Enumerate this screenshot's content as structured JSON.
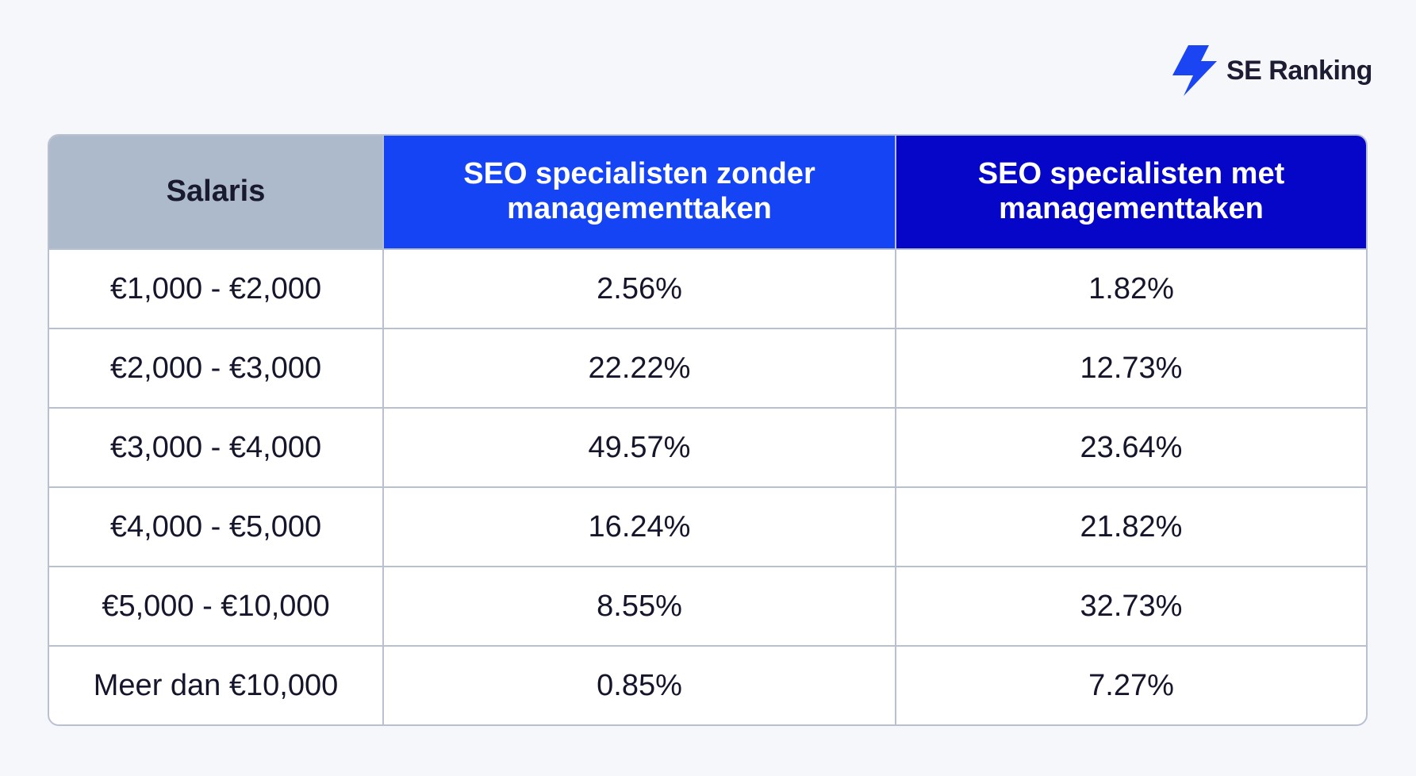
{
  "brand": {
    "name": "SE Ranking",
    "icon": "lightning-bolt-icon",
    "color": "#1b45f2"
  },
  "chart_data": {
    "type": "table",
    "columns": [
      "Salaris",
      "SEO specialisten zonder managementtaken",
      "SEO specialisten met managementtaken"
    ],
    "header_colors": [
      "#acbacb",
      "#1544f5",
      "#0606c8"
    ],
    "rows": [
      [
        "€1,000 - €2,000",
        "2.56%",
        "1.82%"
      ],
      [
        "€2,000 - €3,000",
        "22.22%",
        "12.73%"
      ],
      [
        "€3,000 - €4,000",
        "49.57%",
        "23.64%"
      ],
      [
        "€4,000 - €5,000",
        "16.24%",
        "21.82%"
      ],
      [
        "€5,000 - €10,000",
        "8.55%",
        "32.73%"
      ],
      [
        "Meer dan €10,000",
        "0.85%",
        "7.27%"
      ]
    ]
  }
}
